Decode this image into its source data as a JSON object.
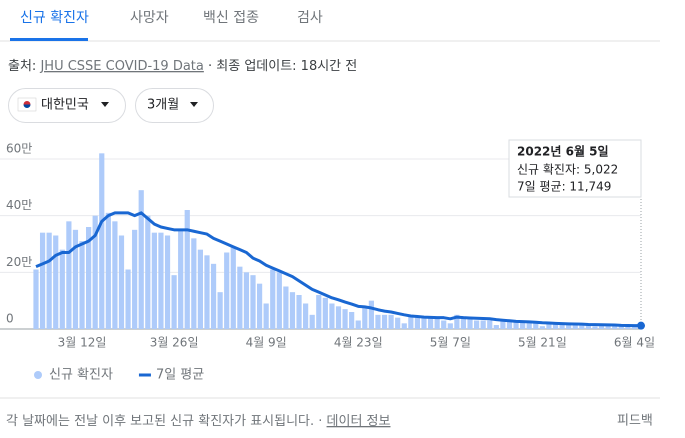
{
  "tabs": [
    "신규 확진자",
    "사망자",
    "백신 접종",
    "검사"
  ],
  "source": {
    "label": "출처:",
    "link": "JHU CSSE COVID-19 Data",
    "updated": "· 최종 업데이트: 18시간 전"
  },
  "filters": [
    "대한민국",
    "3개월"
  ],
  "footer": {
    "note": "각 날짜에는 전날 이후 보고된 신규 확진자가 표시됩니다. ·",
    "link": "데이터 정보",
    "feedback": "피드백"
  },
  "chart_data": {
    "type": "bar",
    "categories": [
      null,
      null,
      null,
      null,
      null,
      null,
      null,
      "3월 12일",
      null,
      null,
      null,
      null,
      null,
      null,
      null,
      null,
      null,
      null,
      null,
      null,
      null,
      "3월 26일",
      null,
      null,
      null,
      null,
      null,
      null,
      null,
      null,
      null,
      null,
      null,
      null,
      null,
      "4월 9일",
      null,
      null,
      null,
      null,
      null,
      null,
      null,
      null,
      null,
      null,
      null,
      null,
      null,
      "4월 23일",
      null,
      null,
      null,
      null,
      null,
      null,
      null,
      null,
      null,
      null,
      null,
      null,
      null,
      "5월 7일",
      null,
      null,
      null,
      null,
      null,
      null,
      null,
      null,
      null,
      null,
      null,
      null,
      null,
      "5월 21일",
      null,
      null,
      null,
      null,
      null,
      null,
      null,
      null,
      null,
      null,
      null,
      null,
      null,
      "6월 4일",
      null
    ],
    "series": [
      {
        "name": "신규 확진자",
        "type": "bar",
        "color": "#aecbfa",
        "values": [
          210000,
          340000,
          340000,
          330000,
          280000,
          380000,
          350000,
          310000,
          360000,
          400000,
          620000,
          410000,
          380000,
          330000,
          210000,
          350000,
          490000,
          400000,
          340000,
          340000,
          330000,
          190000,
          350000,
          420000,
          320000,
          280000,
          260000,
          230000,
          130000,
          270000,
          290000,
          220000,
          200000,
          190000,
          160000,
          90000,
          210000,
          200000,
          150000,
          130000,
          120000,
          90000,
          50000,
          120000,
          110000,
          90000,
          80000,
          70000,
          60000,
          30000,
          80000,
          100000,
          50000,
          50000,
          50000,
          40000,
          20000,
          50000,
          40000,
          40000,
          40000,
          40000,
          30000,
          20000,
          50000,
          40000,
          40000,
          30000,
          30000,
          30000,
          14000,
          32000,
          30000,
          29000,
          26000,
          25000,
          22000,
          10000,
          23000,
          20000,
          19000,
          17000,
          18000,
          16000,
          13000,
          9000,
          14000,
          13000,
          12000,
          11000,
          10000,
          9000,
          5022
        ]
      },
      {
        "name": "7일 평균",
        "type": "line",
        "color": "#1967d2",
        "values": [
          220000,
          230000,
          240000,
          260000,
          270000,
          270000,
          290000,
          300000,
          310000,
          330000,
          380000,
          400000,
          410000,
          410000,
          410000,
          400000,
          410000,
          390000,
          370000,
          360000,
          355000,
          350000,
          350000,
          350000,
          345000,
          340000,
          335000,
          320000,
          310000,
          300000,
          290000,
          280000,
          270000,
          250000,
          240000,
          225000,
          215000,
          205000,
          195000,
          185000,
          170000,
          155000,
          140000,
          130000,
          120000,
          110000,
          103000,
          95000,
          88000,
          80000,
          78000,
          74000,
          68000,
          63000,
          60000,
          55000,
          50000,
          46000,
          44000,
          42000,
          41000,
          40000,
          40000,
          36000,
          42000,
          40000,
          39000,
          38000,
          37000,
          36000,
          33000,
          31000,
          29000,
          27000,
          26000,
          25000,
          24000,
          22000,
          21000,
          20000,
          19000,
          18000,
          17500,
          17000,
          16000,
          15500,
          15000,
          14500,
          14000,
          13000,
          12500,
          12000,
          11749
        ]
      }
    ],
    "ylim": [
      0,
      600000
    ],
    "yticks": [
      0,
      {
        "value": 200000,
        "label": "20만"
      },
      {
        "value": 400000,
        "label": "40만"
      },
      {
        "value": 600000,
        "label": "60만"
      }
    ],
    "grid": true,
    "tooltip": {
      "title": "2022년 6월 5일",
      "lines": [
        "신규 확진자: 5,022",
        "7일 평균: 11,749"
      ]
    }
  }
}
